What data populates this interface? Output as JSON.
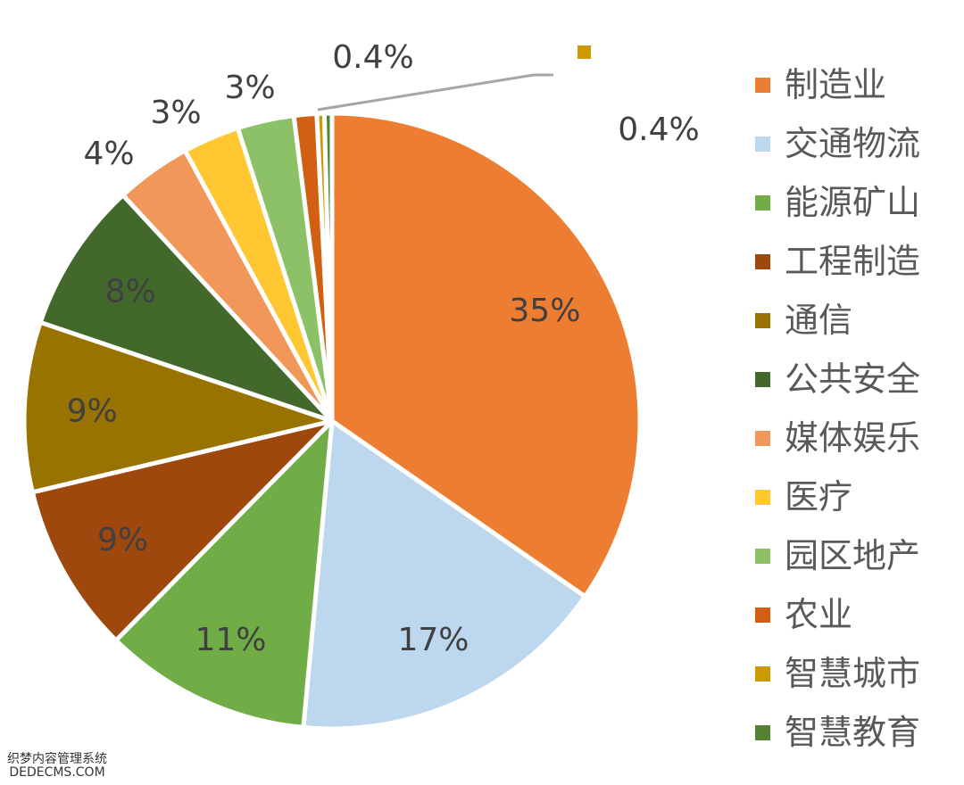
{
  "chart_data": {
    "type": "pie",
    "start_angle": "top, clockwise",
    "categories": [
      "制造业",
      "交通物流",
      "能源矿山",
      "工程制造",
      "通信",
      "公共安全",
      "媒体娱乐",
      "医疗",
      "园区地产",
      "农业",
      "智慧城市",
      "智慧教育"
    ],
    "values": [
      35,
      17,
      11,
      9,
      9,
      8,
      4,
      3,
      3,
      1.2,
      0.4,
      0.4
    ],
    "data_labels": [
      "35%",
      "17%",
      "11%",
      "9%",
      "9%",
      "8%",
      "4%",
      "3%",
      "3%",
      "",
      "0.4%",
      "0.4%"
    ],
    "colors": [
      "#ED7D31",
      "#BDD7EE",
      "#70AD47",
      "#9E480E",
      "#997300",
      "#43682B",
      "#F1975A",
      "#FFC832",
      "#8CC168",
      "#D26012",
      "#CC9900",
      "#548235"
    ],
    "legend_position": "right",
    "title": ""
  },
  "watermark": {
    "line1": "织梦内容管理系统",
    "line2": "DEDECMS.COM"
  }
}
